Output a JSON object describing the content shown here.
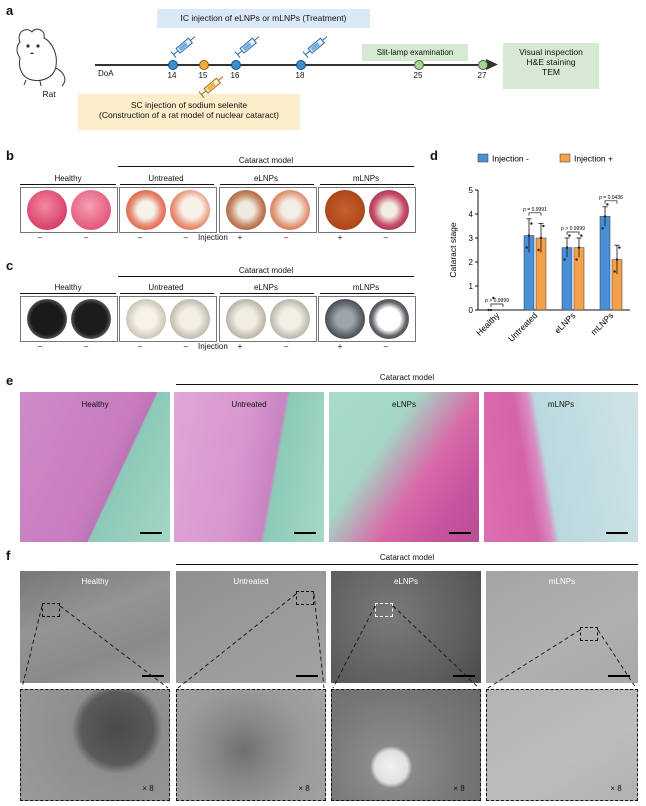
{
  "panels": {
    "a": "a",
    "b": "b",
    "c": "c",
    "d": "d",
    "e": "e",
    "f": "f"
  },
  "timeline": {
    "ic_label": "IC injection of eLNPs or mLNPs (Treatment)",
    "sc_label_1": "SC injection of sodium selenite",
    "sc_label_2": "(Construction of a rat model of nuclear cataract)",
    "slit_lamp": "Slit-lamp examination",
    "visual_1": "Visual inspection",
    "visual_2": "H&E staining",
    "visual_3": "TEM",
    "animal": "Rat",
    "doa": "DoA",
    "days": [
      "14",
      "15",
      "16",
      "18",
      "25",
      "27"
    ]
  },
  "panel_b": {
    "healthy": "Healthy",
    "cataract_model": "Cataract model",
    "untreated": "Untreated",
    "elnps": "eLNPs",
    "mlnps": "mLNPs",
    "injection": "Injection",
    "signs": [
      "–",
      "–",
      "–",
      "–",
      "+",
      "–",
      "+",
      "–"
    ]
  },
  "panel_c": {
    "healthy": "Healthy",
    "cataract_model": "Cataract model",
    "untreated": "Untreated",
    "elnps": "eLNPs",
    "mlnps": "mLNPs",
    "injection": "Injection",
    "signs": [
      "–",
      "–",
      "–",
      "–",
      "+",
      "–",
      "+",
      "–"
    ]
  },
  "chart_data": {
    "type": "bar",
    "ylabel": "Cataract stage",
    "ylim": [
      0,
      5
    ],
    "yticks": [
      "0",
      "1",
      "2",
      "3",
      "4",
      "5"
    ],
    "categories": [
      "Healthy",
      "Untreated",
      "eLNPs",
      "mLNPs"
    ],
    "series": [
      {
        "name": "Injection -",
        "color": "#4a90d9",
        "values": [
          0,
          3.1,
          2.6,
          3.9
        ],
        "errors": [
          0,
          0.7,
          0.4,
          0.4
        ]
      },
      {
        "name": "Injection +",
        "color": "#f5a04a",
        "values": [
          null,
          3.0,
          2.6,
          2.1
        ],
        "errors": [
          null,
          0.6,
          0.4,
          0.6
        ]
      }
    ],
    "pvalues": [
      "p > 0.9999",
      "p = 0.9991",
      "p > 0.9999",
      "p = 0.0436"
    ],
    "legend_position": "top"
  },
  "panel_e": {
    "cataract_model": "Cataract model",
    "labels": [
      "Healthy",
      "Untreated",
      "eLNPs",
      "mLNPs"
    ]
  },
  "panel_f": {
    "cataract_model": "Cataract model",
    "labels": [
      "Healthy",
      "Untreated",
      "eLNPs",
      "mLNPs"
    ],
    "magnification": [
      "× 8",
      "× 8",
      "× 8",
      "× 8"
    ]
  }
}
